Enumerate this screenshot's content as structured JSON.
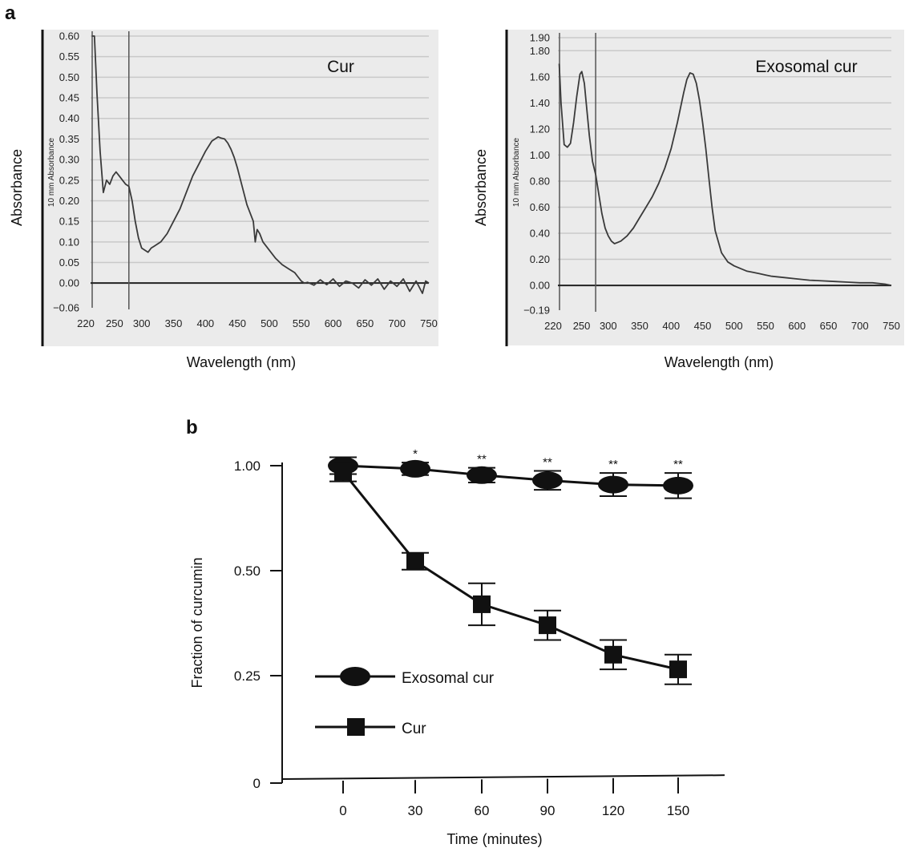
{
  "panel_labels": {
    "a": "a",
    "b": "b"
  },
  "colors": {
    "plot_bg": "#ebebeb",
    "grid": "#c9c9c9",
    "trace": "#3a3a3a",
    "axis": "#111111"
  },
  "chart_data": [
    {
      "id": "uv_cur",
      "type": "line",
      "title": "Cur",
      "xlabel": "Wavelength (nm)",
      "ylabel": "Absorbance",
      "inner_ylabel": "10 mm Absorbance",
      "xlim": [
        220,
        750
      ],
      "ylim": [
        -0.06,
        0.6
      ],
      "grid": true,
      "xticks": [
        "220",
        "250",
        "300",
        "350",
        "400",
        "450",
        "500",
        "550",
        "600",
        "650",
        "700",
        "750"
      ],
      "yticks": [
        "0.60",
        "0.55",
        "0.50",
        "0.45",
        "0.40",
        "0.35",
        "0.30",
        "0.25",
        "0.20",
        "0.15",
        "0.10",
        "0.05",
        "0.00",
        "−0.06"
      ],
      "marker_wavelength": 280,
      "x": [
        222,
        226,
        230,
        235,
        240,
        245,
        250,
        255,
        260,
        265,
        270,
        275,
        280,
        285,
        290,
        295,
        300,
        305,
        310,
        315,
        320,
        330,
        340,
        350,
        360,
        370,
        380,
        390,
        400,
        410,
        420,
        425,
        430,
        435,
        440,
        445,
        450,
        455,
        460,
        465,
        470,
        475,
        478,
        481,
        485,
        490,
        500,
        510,
        520,
        530,
        540,
        545,
        550,
        555,
        560,
        570,
        580,
        590,
        600,
        610,
        620,
        630,
        640,
        650,
        660,
        670,
        680,
        690,
        700,
        710,
        720,
        730,
        740,
        745,
        750
      ],
      "y": [
        0.6,
        0.6,
        0.46,
        0.32,
        0.22,
        0.25,
        0.24,
        0.26,
        0.27,
        0.26,
        0.25,
        0.24,
        0.235,
        0.2,
        0.15,
        0.11,
        0.085,
        0.08,
        0.075,
        0.085,
        0.09,
        0.1,
        0.12,
        0.15,
        0.18,
        0.22,
        0.26,
        0.29,
        0.32,
        0.345,
        0.355,
        0.352,
        0.35,
        0.34,
        0.325,
        0.305,
        0.28,
        0.25,
        0.22,
        0.19,
        0.17,
        0.15,
        0.1,
        0.13,
        0.12,
        0.1,
        0.08,
        0.06,
        0.045,
        0.035,
        0.025,
        0.015,
        0.005,
        0.0,
        0.002,
        -0.005,
        0.008,
        -0.004,
        0.01,
        -0.008,
        0.005,
        0.0,
        -0.012,
        0.008,
        -0.005,
        0.01,
        -0.015,
        0.005,
        -0.008,
        0.01,
        -0.02,
        0.005,
        -0.025,
        0.005,
        0.0
      ]
    },
    {
      "id": "uv_exo",
      "type": "line",
      "title": "Exosomal cur",
      "xlabel": "Wavelength (nm)",
      "ylabel": "Absorbance",
      "inner_ylabel": "10 mm Absorbance",
      "xlim": [
        220,
        750
      ],
      "ylim": [
        -0.19,
        1.9
      ],
      "grid": true,
      "xticks": [
        "220",
        "250",
        "300",
        "350",
        "400",
        "450",
        "500",
        "550",
        "600",
        "650",
        "700",
        "750"
      ],
      "yticks": [
        "1.90",
        "1.80",
        "1.60",
        "1.40",
        "1.20",
        "1.00",
        "0.80",
        "0.60",
        "0.40",
        "0.20",
        "0.00",
        "−0.19"
      ],
      "marker_wavelength": 280,
      "x": [
        222,
        225,
        230,
        235,
        240,
        245,
        250,
        255,
        258,
        262,
        265,
        270,
        275,
        280,
        285,
        290,
        295,
        300,
        305,
        310,
        315,
        320,
        330,
        340,
        350,
        360,
        370,
        380,
        390,
        400,
        410,
        420,
        425,
        430,
        435,
        440,
        445,
        450,
        455,
        460,
        465,
        470,
        480,
        490,
        500,
        510,
        520,
        530,
        540,
        550,
        560,
        580,
        600,
        620,
        640,
        660,
        680,
        700,
        720,
        730,
        740,
        750
      ],
      "y": [
        1.7,
        1.4,
        1.08,
        1.06,
        1.09,
        1.25,
        1.45,
        1.62,
        1.64,
        1.55,
        1.4,
        1.15,
        0.95,
        0.85,
        0.7,
        0.55,
        0.44,
        0.38,
        0.34,
        0.32,
        0.33,
        0.34,
        0.38,
        0.44,
        0.52,
        0.6,
        0.68,
        0.78,
        0.9,
        1.05,
        1.25,
        1.48,
        1.58,
        1.63,
        1.62,
        1.55,
        1.42,
        1.25,
        1.05,
        0.82,
        0.6,
        0.42,
        0.25,
        0.18,
        0.15,
        0.13,
        0.11,
        0.1,
        0.09,
        0.08,
        0.07,
        0.06,
        0.05,
        0.04,
        0.035,
        0.03,
        0.025,
        0.02,
        0.02,
        0.015,
        0.01,
        0.0
      ]
    },
    {
      "id": "stability",
      "type": "line",
      "xlabel": "Time (minutes)",
      "ylabel": "Fraction of curcumin",
      "categories": [
        "0",
        "30",
        "60",
        "90",
        "120",
        "150"
      ],
      "yticks": [
        "1.00",
        "0.50",
        "0.25",
        "0"
      ],
      "series": [
        {
          "name": "Exosomal cur",
          "marker": "ellipse",
          "values": [
            1.0,
            0.985,
            0.955,
            0.93,
            0.91,
            0.905
          ],
          "err": [
            0.04,
            0.03,
            0.035,
            0.045,
            0.055,
            0.06
          ],
          "significance": [
            "",
            "*",
            "**",
            "**",
            "**",
            "**"
          ]
        },
        {
          "name": "Cur",
          "marker": "square",
          "values": [
            0.97,
            0.545,
            0.42,
            0.37,
            0.3,
            0.265
          ],
          "err": [
            0.045,
            0.04,
            0.05,
            0.035,
            0.035,
            0.035
          ]
        }
      ]
    }
  ]
}
